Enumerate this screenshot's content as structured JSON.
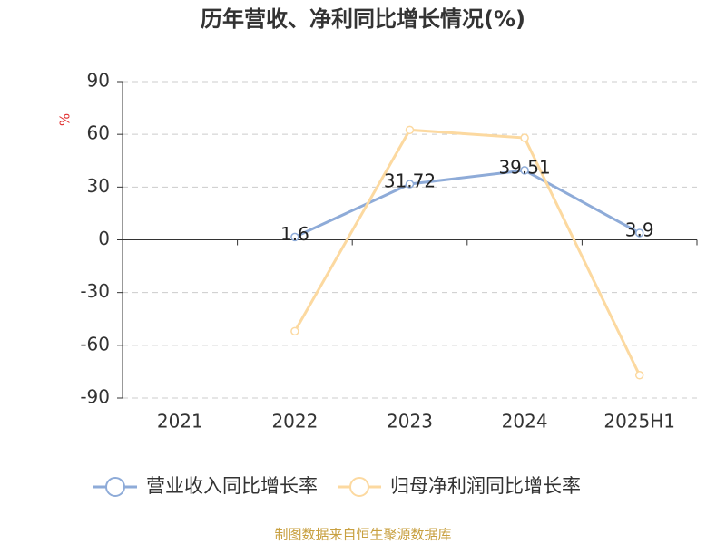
{
  "chart_data": {
    "type": "line",
    "title": "历年营收、净利同比增长情况(%)",
    "y_label": "%",
    "categories": [
      "2021",
      "2022",
      "2023",
      "2024",
      "2025H1"
    ],
    "series": [
      {
        "name": "营业收入同比增长率",
        "color": "#8eabd8",
        "values": [
          null,
          1.6,
          31.72,
          39.51,
          3.9
        ],
        "show_labels": true
      },
      {
        "name": "归母净利润同比增长率",
        "color": "#fcd9a0",
        "values": [
          null,
          -52,
          62.5,
          58,
          -77
        ],
        "show_labels": false
      }
    ],
    "ylim": [
      -90,
      90
    ],
    "yticks": [
      -90,
      -60,
      -30,
      0,
      30,
      60,
      90
    ],
    "grid": true,
    "source": "制图数据来自恒生聚源数据库"
  }
}
